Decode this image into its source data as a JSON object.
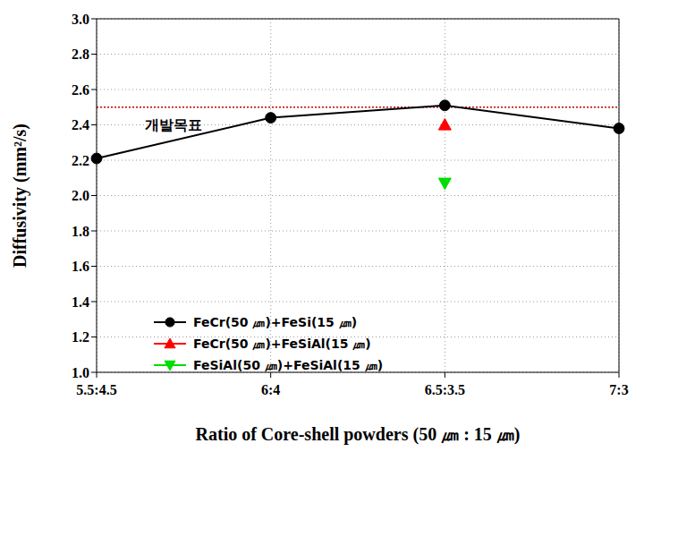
{
  "chart_data": {
    "type": "line",
    "x_label": "Ratio of Core-shell powders (50 ㎛ : 15 ㎛)",
    "y_label": "Diffusivity (mm²/s)",
    "categories": [
      "5.5:4.5",
      "6:4",
      "6.5:3.5",
      "7:3"
    ],
    "series": [
      {
        "name": "FeCr(50 ㎛)+FeSi(15 ㎛)",
        "color": "#000000",
        "marker": "circle",
        "values": [
          2.21,
          2.44,
          2.51,
          2.38
        ]
      },
      {
        "name": "FeCr(50 ㎛)+FeSiAl(15 ㎛)",
        "color": "#ff0000",
        "marker": "triangle",
        "values": [
          null,
          null,
          2.4,
          null
        ]
      },
      {
        "name": "FeSiAl(50 ㎛)+FeSiAl(15 ㎛)",
        "color": "#00dd00",
        "marker": "triangle-down",
        "values": [
          null,
          null,
          2.07,
          null
        ]
      }
    ],
    "ylim": [
      1,
      3
    ],
    "yticks": [
      {
        "value": 1,
        "label": "1.0"
      },
      1.2,
      1.4,
      1.6,
      1.8,
      {
        "value": 2,
        "label": "2.0"
      },
      2.2,
      2.4,
      2.6,
      2.8,
      {
        "value": 3,
        "label": "3.0"
      }
    ],
    "grid": true,
    "legend": "lower left",
    "annotations": [
      {
        "text": "개발목표",
        "y": 2.5,
        "color": "#c00000",
        "line_style": "dotted"
      }
    ]
  }
}
